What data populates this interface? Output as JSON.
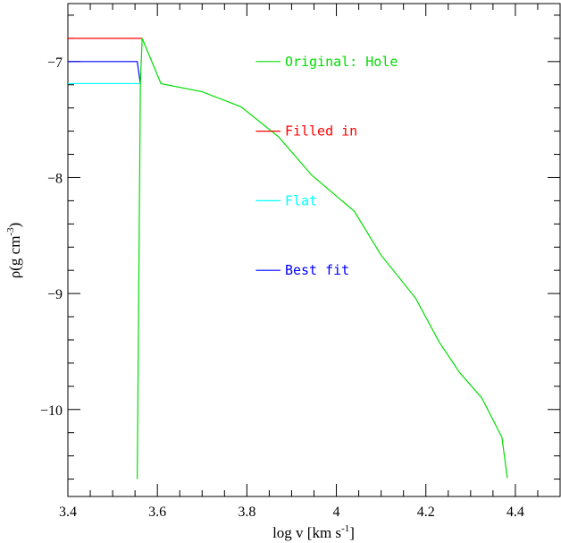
{
  "chart_data": {
    "type": "line",
    "title": "",
    "xlabel": "log v [km s",
    "xlabel_sup": "-1",
    "xlabel_end": "]",
    "ylabel": "ρ(g cm",
    "ylabel_sup": "-3",
    "ylabel_end": ")",
    "xlim": [
      3.4,
      4.5
    ],
    "ylim": [
      -10.75,
      -6.5
    ],
    "x_ticks": [
      3.4,
      3.6,
      3.8,
      4.0,
      4.2,
      4.4
    ],
    "x_tick_labels": [
      "3.4",
      "3.6",
      "3.8",
      "4",
      "4.2",
      "4.4"
    ],
    "y_ticks": [
      -7,
      -8,
      -9,
      -10
    ],
    "y_tick_labels": [
      "−7",
      "−8",
      "−9",
      "−10"
    ],
    "grid": false,
    "legend_position": "top-right",
    "series": [
      {
        "name": "Filled in",
        "color": "#ff0000",
        "points": [
          [
            3.4,
            -6.8
          ],
          [
            3.566,
            -6.8
          ]
        ]
      },
      {
        "name": "Flat",
        "color": "#00ffff",
        "points": [
          [
            3.4,
            -7.19
          ],
          [
            3.562,
            -7.19
          ]
        ]
      },
      {
        "name": "Best fit",
        "color": "#0000ff",
        "points": [
          [
            3.4,
            -7.0
          ],
          [
            3.555,
            -7.0
          ],
          [
            3.562,
            -7.19
          ]
        ]
      },
      {
        "name": "Original: Hole",
        "color": "#00dd00",
        "points": [
          [
            3.555,
            -10.6
          ],
          [
            3.562,
            -7.19
          ],
          [
            3.566,
            -6.8
          ],
          [
            3.608,
            -7.19
          ],
          [
            3.7,
            -7.26
          ],
          [
            3.787,
            -7.39
          ],
          [
            3.871,
            -7.65
          ],
          [
            3.945,
            -7.98
          ],
          [
            4.04,
            -8.29
          ],
          [
            4.1,
            -8.67
          ],
          [
            4.177,
            -9.04
          ],
          [
            4.23,
            -9.42
          ],
          [
            4.275,
            -9.68
          ],
          [
            4.325,
            -9.9
          ],
          [
            4.37,
            -10.24
          ],
          [
            4.382,
            -10.59
          ]
        ]
      }
    ],
    "legend_order": [
      "Original: Hole",
      "Filled in",
      "Flat",
      "Best fit"
    ]
  }
}
